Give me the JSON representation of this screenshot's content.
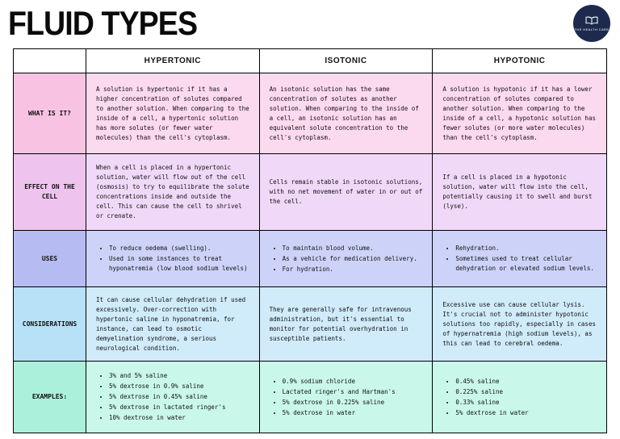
{
  "title": "FLUID TYPES",
  "logo": {
    "text": "THE HEALTH CARE",
    "icon": "book-icon"
  },
  "headers": [
    "HYPERTONIC",
    "ISOTONIC",
    "HYPOTONIC"
  ],
  "rows": [
    {
      "label": "WHAT IS IT?",
      "cells": [
        "A solution is hypertonic if it has a higher concentration of solutes compared to another solution. When comparing to the inside of a cell, a hypertonic solution has more solutes (or fewer water molecules) than the cell's cytoplasm.",
        "An isotonic solution has the same concentration of solutes as another solution. When comparing to the inside of a cell, an isotonic solution has an equivalent solute concentration to the cell's cytoplasm.",
        "A solution is hypotonic if it has a lower concentration of solutes compared to another solution. When comparing to the inside of a cell, a hypotonic solution has fewer solutes (or more water molecules) than the cell's cytoplasm."
      ]
    },
    {
      "label": "EFFECT ON THE CELL",
      "cells": [
        "When a cell is placed in a hypertonic solution, water will flow out of the cell (osmosis) to try to equilibrate the solute concentrations inside and outside the cell. This can cause the cell to shrivel or crenate.",
        "Cells remain stable in isotonic solutions, with no net movement of water in or out of the cell.",
        "If a cell is placed in a hypotonic solution, water will flow into the cell, potentially causing it to swell and burst (lyse)."
      ]
    },
    {
      "label": "USES",
      "cells": [
        [
          "To reduce oedema (swelling).",
          "Used in some instances to treat hyponatremia (low blood sodium levels)"
        ],
        [
          "To maintain blood volume.",
          "As a vehicle for medication delivery.",
          "For hydration."
        ],
        [
          "Rehydration.",
          "Sometimes used to treat cellular dehydration or elevated sodium levels."
        ]
      ]
    },
    {
      "label": "CONSIDERATIONS",
      "cells": [
        "It can cause cellular dehydration if used excessively. Over-correction with hypertonic saline in hyponatremia, for instance, can lead to osmotic demyelination syndrome, a serious neurological condition.",
        "They are generally safe for intravenous administration, but it's essential to monitor for potential overhydration in susceptible patients.",
        "Excessive use can cause cellular lysis. It's crucial not to administer hypotonic solutions too rapidly, especially in cases of hypernatremia (high sodium levels), as this can lead to cerebral oedema."
      ]
    },
    {
      "label": "EXAMPLES:",
      "cells": [
        [
          "3% and 5% saline",
          "5% dextrose in 0.9% saline",
          "5% dextrose in 0.45% saline",
          "5% dextrose in lactated ringer's",
          "10% dextrose in water"
        ],
        [
          "0.9% sodium chloride",
          "Lactated ringer's and Hartman's",
          "5% dextrose in 0.225% saline",
          "5% dextrose in water"
        ],
        [
          "0.45% saline",
          "0.225% saline",
          "0.33% saline",
          "5% dextrose in water"
        ]
      ]
    }
  ],
  "colors": {
    "logo_bg": "#1d2a4d",
    "rows": [
      {
        "label": "#f8c3e2",
        "cell": "#fbd9ee"
      },
      {
        "label": "#eec4ee",
        "cell": "#f0d9f8"
      },
      {
        "label": "#b6bcf1",
        "cell": "#cdd3f8"
      },
      {
        "label": "#b6e1f6",
        "cell": "#d0ebfa"
      },
      {
        "label": "#abf0db",
        "cell": "#c9f8eb"
      }
    ]
  }
}
